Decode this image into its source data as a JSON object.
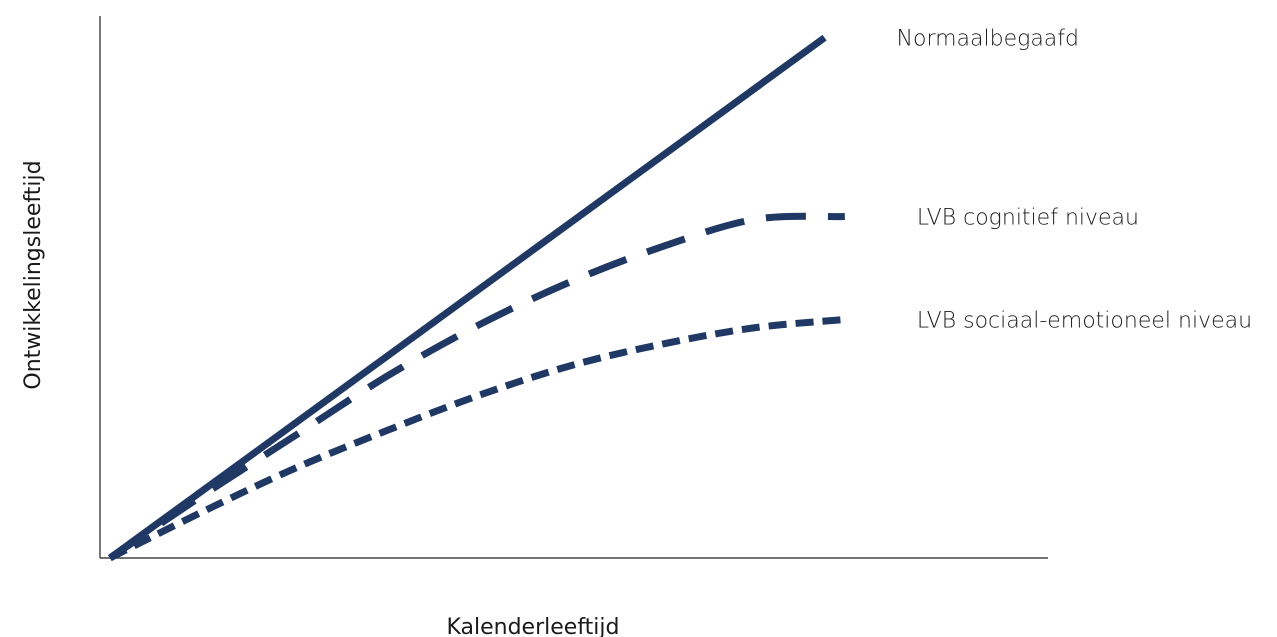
{
  "chart_data": {
    "type": "line",
    "title": "",
    "xlabel": "Kalenderleeftijd",
    "ylabel": "Ontwikkelingsleeftijd",
    "xlim": [
      0,
      1
    ],
    "ylim": [
      0,
      1
    ],
    "grid": false,
    "legend": "right-of-lines",
    "series": [
      {
        "name": "Normaalbegaafd",
        "style": "solid",
        "color": "#1f3864",
        "points": [
          [
            0,
            0
          ],
          [
            0.775,
            0.96
          ]
        ]
      },
      {
        "name": "LVB cognitief niveau",
        "style": "long-dash",
        "color": "#1f3864",
        "points": [
          [
            0,
            0
          ],
          [
            0.1,
            0.115
          ],
          [
            0.2,
            0.225
          ],
          [
            0.3,
            0.335
          ],
          [
            0.4,
            0.43
          ],
          [
            0.5,
            0.51
          ],
          [
            0.6,
            0.575
          ],
          [
            0.7,
            0.625
          ],
          [
            0.797,
            0.63
          ]
        ]
      },
      {
        "name": "LVB sociaal-emotioneel niveau",
        "style": "short-dash",
        "color": "#1f3864",
        "points": [
          [
            0,
            0
          ],
          [
            0.1,
            0.085
          ],
          [
            0.2,
            0.165
          ],
          [
            0.3,
            0.235
          ],
          [
            0.4,
            0.3
          ],
          [
            0.5,
            0.355
          ],
          [
            0.6,
            0.395
          ],
          [
            0.7,
            0.425
          ],
          [
            0.797,
            0.44
          ]
        ]
      }
    ]
  }
}
